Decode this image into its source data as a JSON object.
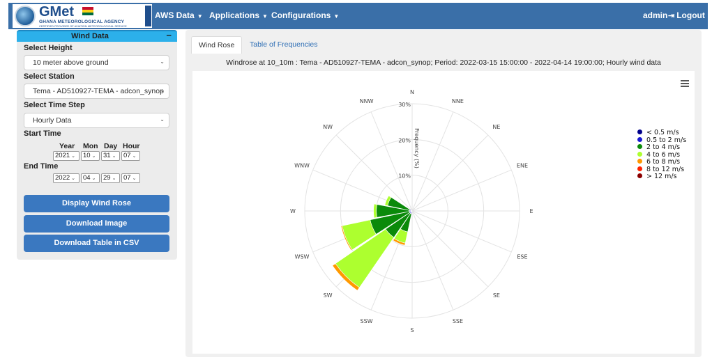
{
  "navbar": {
    "logo_title": "GMet",
    "logo_agency": "GHANA METEOROLOGICAL AGENCY",
    "logo_tagline": "CERTIFIED PROVIDER OF AVIATION METEOROLOGICAL SERVICE",
    "menu": [
      {
        "label": "AWS Data"
      },
      {
        "label": "Applications"
      },
      {
        "label": "Configurations"
      }
    ],
    "user": "admin",
    "logout": "Logout",
    "bg_color": "#3a6fa8"
  },
  "sidebar": {
    "title": "Wind Data",
    "collapse_symbol": "−",
    "height_label": "Select Height",
    "height_value": "10 meter above ground",
    "station_label": "Select Station",
    "station_value": "Tema - AD510927-TEMA - adcon_synop",
    "timestep_label": "Select Time Step",
    "timestep_value": "Hourly Data",
    "start_label": "Start Time",
    "end_label": "End Time",
    "col_year": "Year",
    "col_mon": "Mon",
    "col_day": "Day",
    "col_hour": "Hour",
    "start": {
      "year": "2021",
      "mon": "10",
      "day": "31",
      "hour": "07"
    },
    "end": {
      "year": "2022",
      "mon": "04",
      "day": "29",
      "hour": "07"
    },
    "btn_display": "Display Wind Rose",
    "btn_image": "Download Image",
    "btn_csv": "Download Table in CSV",
    "accent_color": "#2cb0ea",
    "button_color": "#3a78c0"
  },
  "tabs": [
    {
      "label": "Wind Rose",
      "active": true
    },
    {
      "label": "Table of Frequencies",
      "active": false
    }
  ],
  "chart_caption": "Windrose at 10_10m : Tema - AD510927-TEMA - adcon_synop; Period: 2022-03-15 15:00:00 - 2022-04-14 19:00:00; Hourly wind data",
  "chart_data": {
    "type": "windrose",
    "directions": [
      "N",
      "NNE",
      "NE",
      "ENE",
      "E",
      "ESE",
      "SE",
      "SSE",
      "S",
      "SSW",
      "SW",
      "WSW",
      "W",
      "WNW",
      "NW",
      "NNW"
    ],
    "radial_ticks": [
      "10%",
      "20%",
      "30%"
    ],
    "radial_max": 30,
    "radial_axis_label": "Frequency (%)",
    "legend": [
      {
        "name": "< 0.5 m/s",
        "color": "#00008b"
      },
      {
        "name": "0.5 to 2 m/s",
        "color": "#1a1ad4"
      },
      {
        "name": "2 to 4 m/s",
        "color": "#0a8a0a"
      },
      {
        "name": "4 to 6 m/s",
        "color": "#adff2f"
      },
      {
        "name": "6 to 8 m/s",
        "color": "#ff9900"
      },
      {
        "name": "8 to 12 m/s",
        "color": "#ff2200"
      },
      {
        "name": "> 12 m/s",
        "color": "#8b0000"
      }
    ],
    "sectors": [
      {
        "dir": "SSW",
        "cumulative": [
          0.3,
          0.8,
          6.0,
          9.2,
          9.8
        ]
      },
      {
        "dir": "SW",
        "cumulative": [
          0.3,
          0.8,
          9.0,
          26.0,
          27.0
        ]
      },
      {
        "dir": "WSW",
        "cumulative": [
          0.3,
          0.8,
          12.0,
          20.0,
          20.3
        ]
      },
      {
        "dir": "W",
        "cumulative": [
          0.3,
          0.8,
          10.0,
          10.8
        ]
      },
      {
        "dir": "WNW",
        "cumulative": [
          0.3,
          0.8,
          7.0,
          7.8
        ]
      }
    ]
  }
}
